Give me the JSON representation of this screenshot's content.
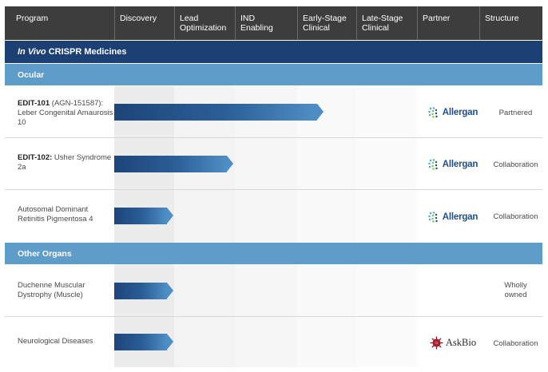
{
  "header": {
    "columns": [
      "Program",
      "Discovery",
      "Lead\nOptimization",
      "IND\nEnabling",
      "Early-Stage\nClinical",
      "Late-Stage\nClinical",
      "Partner",
      "Structure"
    ]
  },
  "section": {
    "title_italic": "In Vivo",
    "title_rest": " CRISPR Medicines"
  },
  "groups": [
    {
      "name": "Ocular",
      "programs": [
        {
          "name_bold": "EDIT-101",
          "name_rest": " (AGN-151587): Leber Congenital Amaurosis 10",
          "stage_progress": 3.5,
          "partner": "Allergan",
          "structure": "Partnered"
        },
        {
          "name_bold": "EDIT-102:",
          "name_rest": " Usher Syndrome 2a",
          "stage_progress": 2.0,
          "partner": "Allergan",
          "structure": "Collaboration"
        },
        {
          "name_bold": "",
          "name_rest": "Autosomal Dominant Retinitis Pigmentosa 4",
          "stage_progress": 1.0,
          "partner": "Allergan",
          "structure": "Collaboration"
        }
      ]
    },
    {
      "name": "Other Organs",
      "programs": [
        {
          "name_bold": "",
          "name_rest": "Duchenne Muscular Dystrophy (Muscle)",
          "stage_progress": 1.0,
          "partner": "",
          "structure": "Wholly owned"
        },
        {
          "name_bold": "",
          "name_rest": "Neurological Diseases",
          "stage_progress": 1.0,
          "partner": "AskBio",
          "structure": "Collaboration"
        }
      ]
    }
  ],
  "colors": {
    "header_bg": "#3d3d3d",
    "section_bg": "#1c3f74",
    "group_bg": "#5e9cc9",
    "bar": "#1d4579"
  }
}
